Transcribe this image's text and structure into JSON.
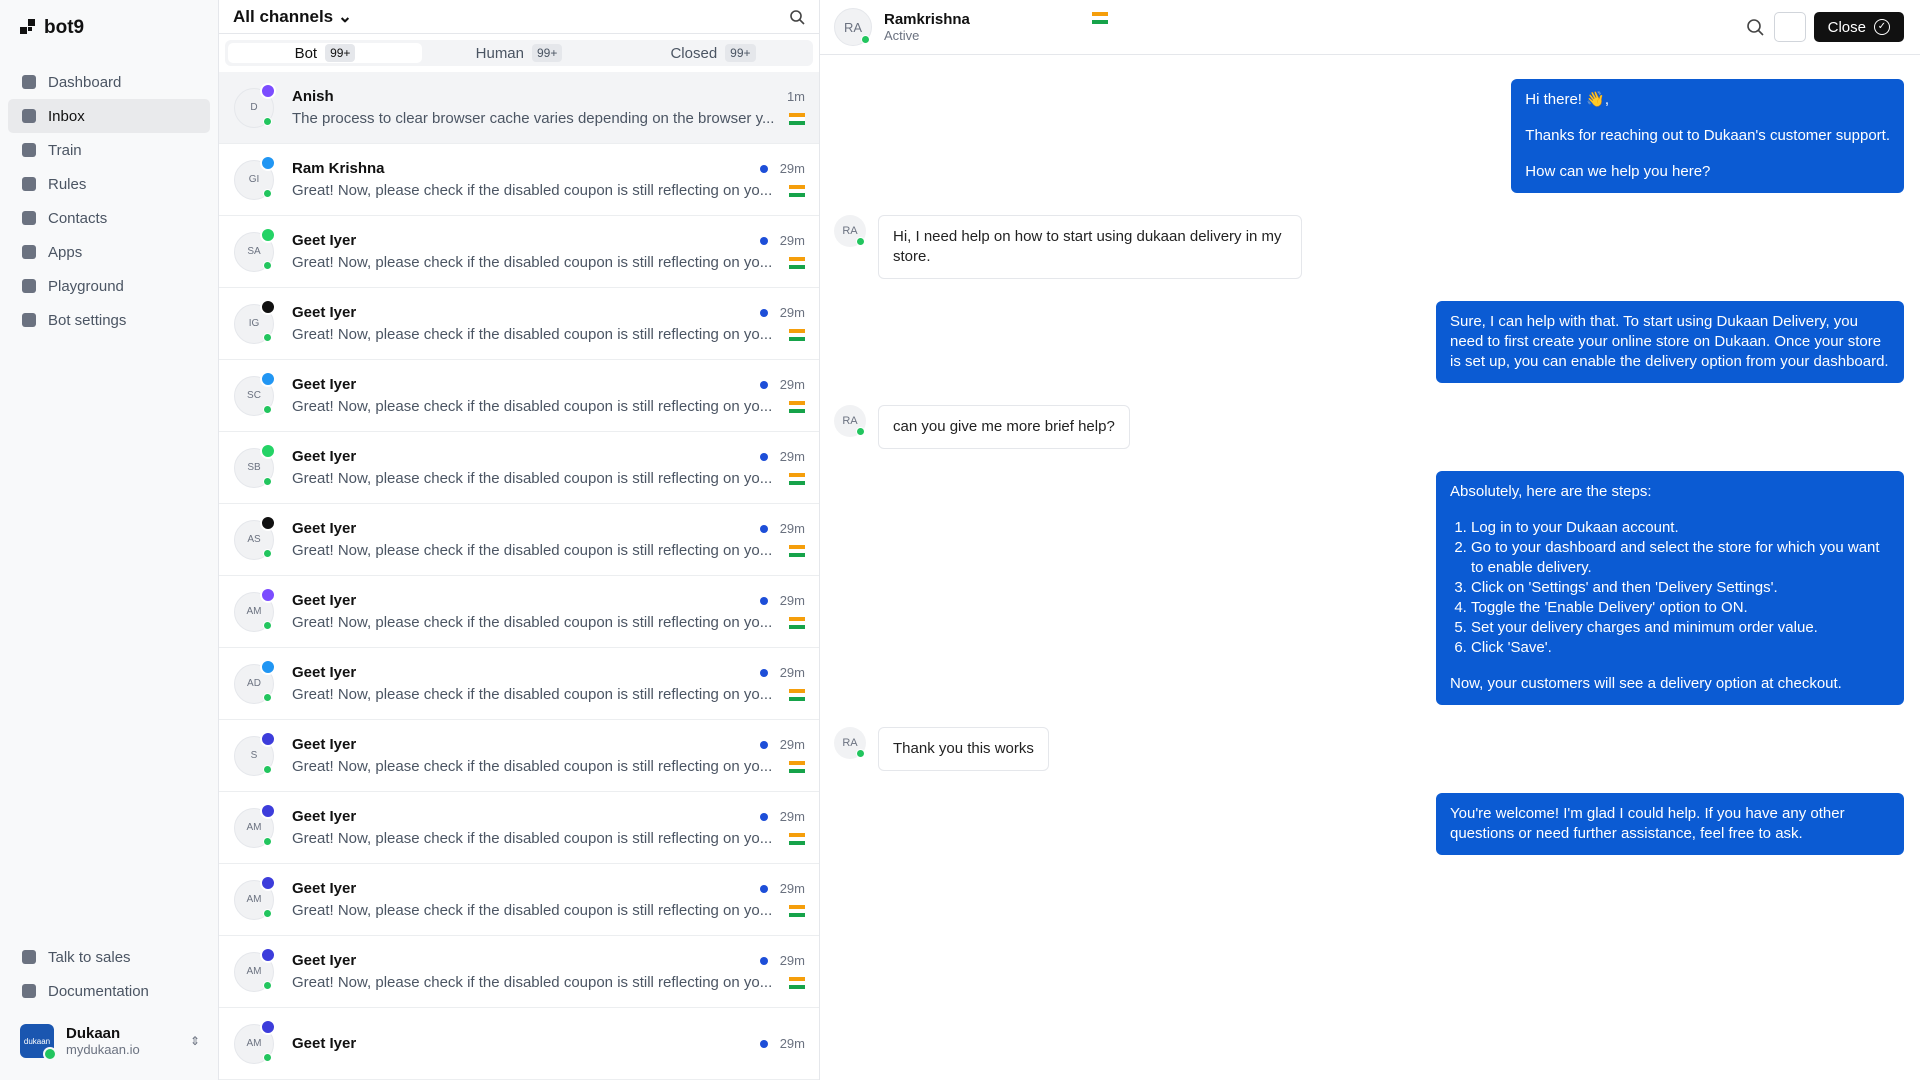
{
  "sidebar": {
    "brand": "bot9",
    "nav": [
      {
        "label": "Dashboard"
      },
      {
        "label": "Inbox",
        "active": true
      },
      {
        "label": "Train"
      },
      {
        "label": "Rules"
      },
      {
        "label": "Contacts"
      },
      {
        "label": "Apps"
      },
      {
        "label": "Playground"
      },
      {
        "label": "Bot settings"
      }
    ],
    "footer_links": [
      "Talk to sales",
      "Documentation"
    ],
    "workspace": {
      "name": "Dukaan",
      "domain": "mydukaan.io",
      "logo": "dukaan"
    }
  },
  "inbox": {
    "filter": "All channels",
    "tabs": [
      {
        "label": "Bot",
        "count": "99+",
        "active": true
      },
      {
        "label": "Human",
        "count": "99+"
      },
      {
        "label": "Closed",
        "count": "99+"
      }
    ],
    "conversations": [
      {
        "initials": "D",
        "channel_color": "#7c4dff",
        "name": "Anish",
        "preview": "The process to clear browser cache varies depending on the browser y...",
        "time": "1m",
        "selected": true
      },
      {
        "initials": "GI",
        "channel_color": "#2196f3",
        "name": "Ram Krishna",
        "preview": "Great! Now, please check if the disabled coupon is still reflecting on yo...",
        "time": "29m",
        "unread": true
      },
      {
        "initials": "SA",
        "channel_color": "#25d366",
        "name": "Geet Iyer",
        "preview": "Great! Now, please check if the disabled coupon is still reflecting on yo...",
        "time": "29m",
        "unread": true
      },
      {
        "initials": "IG",
        "channel_color": "#111111",
        "name": "Geet Iyer",
        "preview": "Great! Now, please check if the disabled coupon is still reflecting on yo...",
        "time": "29m",
        "unread": true
      },
      {
        "initials": "SC",
        "channel_color": "#2196f3",
        "name": "Geet Iyer",
        "preview": "Great! Now, please check if the disabled coupon is still reflecting on yo...",
        "time": "29m",
        "unread": true
      },
      {
        "initials": "SB",
        "channel_color": "#25d366",
        "name": "Geet Iyer",
        "preview": "Great! Now, please check if the disabled coupon is still reflecting on yo...",
        "time": "29m",
        "unread": true
      },
      {
        "initials": "AS",
        "channel_color": "#111111",
        "name": "Geet Iyer",
        "preview": "Great! Now, please check if the disabled coupon is still reflecting on yo...",
        "time": "29m",
        "unread": true
      },
      {
        "initials": "AM",
        "channel_color": "#7c4dff",
        "name": "Geet Iyer",
        "preview": "Great! Now, please check if the disabled coupon is still reflecting on yo...",
        "time": "29m",
        "unread": true
      },
      {
        "initials": "AD",
        "channel_color": "#2196f3",
        "name": "Geet Iyer",
        "preview": "Great! Now, please check if the disabled coupon is still reflecting on yo...",
        "time": "29m",
        "unread": true
      },
      {
        "initials": "S",
        "channel_color": "#3d3ddb",
        "name": "Geet Iyer",
        "preview": "Great! Now, please check if the disabled coupon is still reflecting on yo...",
        "time": "29m",
        "unread": true
      },
      {
        "initials": "AM",
        "channel_color": "#3d3ddb",
        "name": "Geet Iyer",
        "preview": "Great! Now, please check if the disabled coupon is still reflecting on yo...",
        "time": "29m",
        "unread": true
      },
      {
        "initials": "AM",
        "channel_color": "#3d3ddb",
        "name": "Geet Iyer",
        "preview": "Great! Now, please check if the disabled coupon is still reflecting on yo...",
        "time": "29m",
        "unread": true
      },
      {
        "initials": "AM",
        "channel_color": "#3d3ddb",
        "name": "Geet Iyer",
        "preview": "Great! Now, please check if the disabled coupon is still reflecting on yo...",
        "time": "29m",
        "unread": true
      },
      {
        "initials": "AM",
        "channel_color": "#3d3ddb",
        "name": "Geet Iyer",
        "time": "29m",
        "unread": true
      }
    ]
  },
  "chat": {
    "contact": {
      "initials": "RA",
      "name": "Ramkrishna",
      "status": "Active"
    },
    "close": "Close",
    "messages": [
      {
        "from": "bot",
        "blocks": [
          "Hi there! 👋,",
          "Thanks for reaching out to Dukaan's customer support.",
          "How can we help you here?"
        ]
      },
      {
        "from": "user",
        "blocks": [
          "Hi, I need help on how to start using dukaan delivery in my store."
        ]
      },
      {
        "from": "bot",
        "blocks": [
          "Sure, I can help with that. To start using Dukaan Delivery, you need to first create your online store on Dukaan. Once your store is set up, you can enable the delivery option from your dashboard."
        ]
      },
      {
        "from": "user",
        "blocks": [
          "can you give me more brief help?"
        ]
      },
      {
        "from": "bot",
        "blocks": [
          "Absolutely, here are the steps:",
          {
            "list": [
              "Log in to your Dukaan account.",
              "Go to your dashboard and select the store for which you want to enable delivery.",
              "Click on 'Settings' and then 'Delivery Settings'.",
              "Toggle the 'Enable Delivery' option to ON.",
              "Set your delivery charges and minimum order value.",
              "Click 'Save'."
            ]
          },
          "Now, your customers will see a delivery option at checkout."
        ]
      },
      {
        "from": "user",
        "blocks": [
          "Thank you this works"
        ]
      },
      {
        "from": "bot",
        "blocks": [
          "You're welcome! I'm glad I could help. If you have any other questions or need further assistance, feel free to ask."
        ]
      }
    ]
  }
}
